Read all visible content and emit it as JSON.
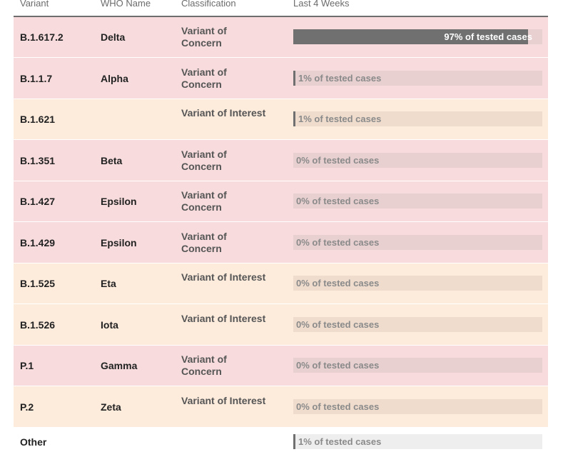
{
  "header": {
    "variant": "Variant",
    "who_name": "WHO Name",
    "classification": "Classification",
    "last_4_weeks": "Last 4 Weeks"
  },
  "colors": {
    "concern_bg": "#f8dcdd",
    "interest_bg": "#fdebdc",
    "bar_fill": "#707070"
  },
  "rows": [
    {
      "variant": "B.1.617.2",
      "who": "Delta",
      "classification": "Variant of Concern",
      "type": "concern",
      "percent": 97,
      "label": "97% of tested cases"
    },
    {
      "variant": "B.1.1.7",
      "who": "Alpha",
      "classification": "Variant of Concern",
      "type": "concern",
      "percent": 1,
      "label": "1% of tested cases"
    },
    {
      "variant": "B.1.621",
      "who": "",
      "classification": "Variant of Interest",
      "type": "interest",
      "percent": 1,
      "label": "1% of tested cases"
    },
    {
      "variant": "B.1.351",
      "who": "Beta",
      "classification": "Variant of Concern",
      "type": "concern",
      "percent": 0,
      "label": "0% of tested cases"
    },
    {
      "variant": "B.1.427",
      "who": "Epsilon",
      "classification": "Variant of Concern",
      "type": "concern",
      "percent": 0,
      "label": "0% of tested cases"
    },
    {
      "variant": "B.1.429",
      "who": "Epsilon",
      "classification": "Variant of Concern",
      "type": "concern",
      "percent": 0,
      "label": "0% of tested cases"
    },
    {
      "variant": "B.1.525",
      "who": "Eta",
      "classification": "Variant of Interest",
      "type": "interest",
      "percent": 0,
      "label": "0% of tested cases"
    },
    {
      "variant": "B.1.526",
      "who": "Iota",
      "classification": "Variant of Interest",
      "type": "interest",
      "percent": 0,
      "label": "0% of tested cases"
    },
    {
      "variant": "P.1",
      "who": "Gamma",
      "classification": "Variant of Concern",
      "type": "concern",
      "percent": 0,
      "label": "0% of tested cases"
    },
    {
      "variant": "P.2",
      "who": "Zeta",
      "classification": "Variant of Interest",
      "type": "interest",
      "percent": 0,
      "label": "0% of tested cases"
    },
    {
      "variant": "Other",
      "who": "",
      "classification": "",
      "type": "other",
      "percent": 1,
      "label": "1% of tested cases"
    }
  ]
}
